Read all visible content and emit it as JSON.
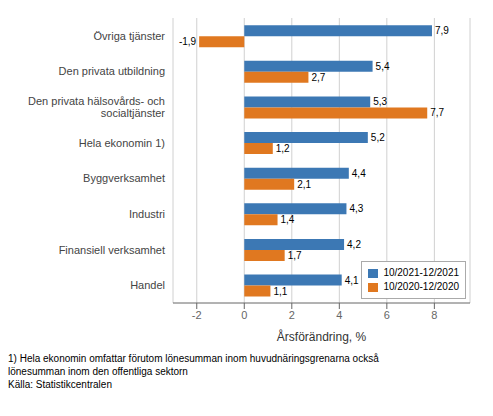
{
  "chart_data": {
    "type": "bar",
    "orientation": "horizontal",
    "categories": [
      "Handel",
      "Finansiell verksamhet",
      "Industri",
      "Byggverksamhet",
      "Hela ekonomin 1)",
      "Den privata hälsovårds- och\nsocialtjänster",
      "Den privata utbildning",
      "Övriga tjänster"
    ],
    "series": [
      {
        "name": "10/2021-12/2021",
        "color": "#3C78B4",
        "values": [
          4.1,
          4.2,
          4.3,
          4.4,
          5.2,
          5.3,
          5.4,
          7.9
        ],
        "value_labels": [
          "4,1",
          "4,2",
          "4,3",
          "4,4",
          "5,2",
          "5,3",
          "5,4",
          "7,9"
        ]
      },
      {
        "name": "10/2020-12/2020",
        "color": "#E07820",
        "values": [
          1.1,
          1.7,
          1.4,
          2.1,
          1.2,
          7.7,
          2.7,
          -1.9
        ],
        "value_labels": [
          "1,1",
          "1,7",
          "1,4",
          "2,1",
          "1,2",
          "7,7",
          "2,7",
          "-1,9"
        ]
      }
    ],
    "xlabel": "Årsförändring, %",
    "xlim": [
      -3,
      9.5
    ],
    "xticks": [
      -2,
      0,
      2,
      4,
      6,
      8
    ],
    "grid": true,
    "legend": "lower right",
    "data_labels": true,
    "annotations": [
      "1) Hela ekonomin omfattar förutom lönesumman inom huvudnäringsgrenarna också",
      "lönesumman inom den offentliga sektorn",
      "Källa: Statistikcentralen"
    ]
  }
}
